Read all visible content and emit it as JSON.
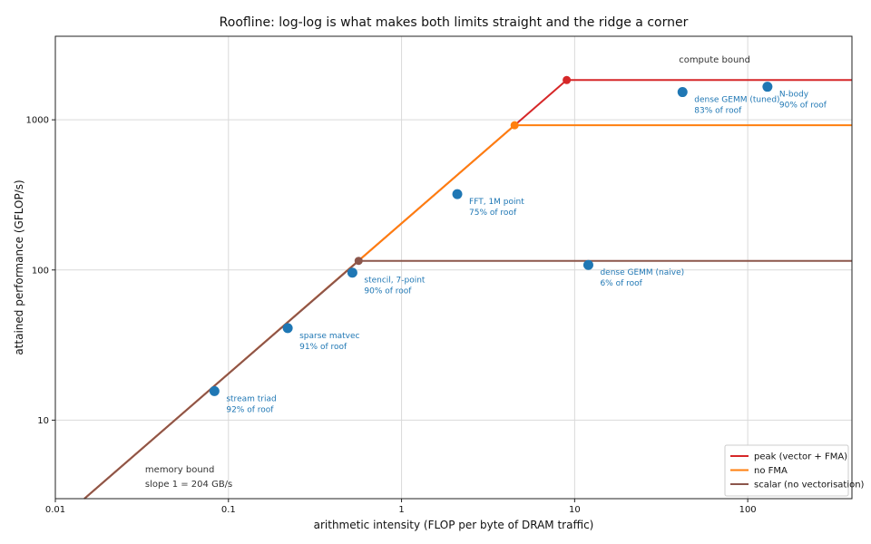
{
  "chart_data": {
    "type": "line",
    "title": "Roofline: log-log is what makes both limits straight and the ridge a corner",
    "xlabel": "arithmetic intensity (FLOP per byte of DRAM traffic)",
    "ylabel": "attained performance (GFLOP/s)",
    "x_scale": "log",
    "y_scale": "log",
    "xlim": [
      0.01,
      400
    ],
    "ylim": [
      3,
      3600
    ],
    "grid": true,
    "legend_position": "lower-right",
    "x_ticks": [
      {
        "value": 0.01,
        "label": "0.01"
      },
      {
        "value": 0.1,
        "label": "0.1"
      },
      {
        "value": 1,
        "label": "1"
      },
      {
        "value": 10,
        "label": "10"
      },
      {
        "value": 100,
        "label": "100"
      }
    ],
    "y_ticks": [
      {
        "value": 10,
        "label": "10"
      },
      {
        "value": 100,
        "label": "100"
      },
      {
        "value": 1000,
        "label": "1000"
      }
    ],
    "memory_bandwidth_gbs": 204,
    "series": [
      {
        "name": "peak (vector + FMA)",
        "color": "#d62728",
        "ridge_x": 9.0,
        "peak_gflops": 1840
      },
      {
        "name": "no FMA",
        "color": "#ff7f0e",
        "ridge_x": 4.5,
        "peak_gflops": 920
      },
      {
        "name": "scalar (no vectorisation)",
        "color": "#8c564b",
        "ridge_x": 0.565,
        "peak_gflops": 115
      }
    ],
    "points": [
      {
        "name": "stream triad",
        "pct": "92% of roof",
        "x": 0.083,
        "y": 15.6
      },
      {
        "name": "sparse matvec",
        "pct": "91% of roof",
        "x": 0.22,
        "y": 41
      },
      {
        "name": "stencil, 7-point",
        "pct": "90% of roof",
        "x": 0.52,
        "y": 96
      },
      {
        "name": "FFT, 1M point",
        "pct": "75% of roof",
        "x": 2.1,
        "y": 320
      },
      {
        "name": "dense GEMM (naive)",
        "pct": "6% of roof",
        "x": 12,
        "y": 108
      },
      {
        "name": "dense GEMM (tuned)",
        "pct": "83% of roof",
        "x": 42,
        "y": 1530
      },
      {
        "name": "N-body",
        "pct": "90% of roof",
        "x": 130,
        "y": 1660
      }
    ],
    "point_color": "#1f77b4",
    "annotations": {
      "memory_bound": [
        "memory bound",
        "slope 1 = 204 GB/s"
      ],
      "compute_bound": "compute bound"
    }
  }
}
